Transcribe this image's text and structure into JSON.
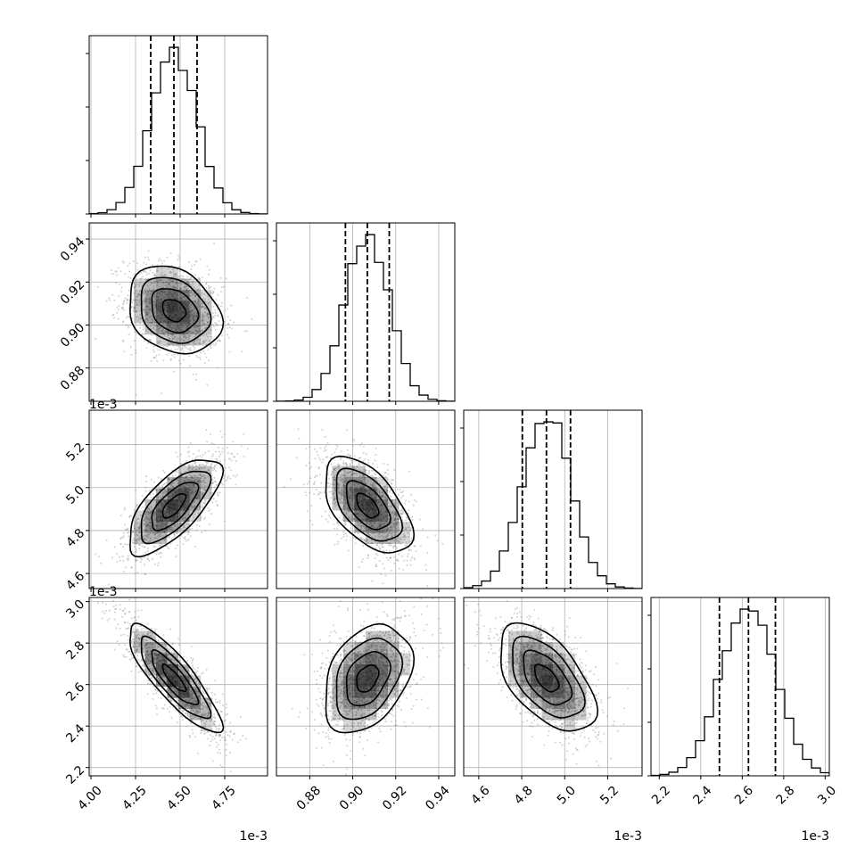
{
  "chart_data": {
    "type": "corner",
    "grid": true,
    "parameters": [
      {
        "ticks": [
          4.0,
          4.25,
          4.5,
          4.75
        ],
        "tick_labels": [
          "4.00",
          "4.25",
          "4.50",
          "4.75"
        ],
        "range": [
          3.99,
          4.99
        ],
        "offset_text": "1e-3",
        "mean": 4.465,
        "sd": 0.13,
        "quantiles": [
          4.335,
          4.465,
          4.595
        ]
      },
      {
        "ticks": [
          0.88,
          0.9,
          0.92,
          0.94
        ],
        "tick_labels": [
          "0.88",
          "0.90",
          "0.92",
          "0.94"
        ],
        "range": [
          0.8645,
          0.9475
        ],
        "offset_text": "",
        "mean": 0.9068,
        "sd": 0.0102,
        "quantiles": [
          0.8966,
          0.9068,
          0.917
        ]
      },
      {
        "ticks": [
          4.6,
          4.8,
          5.0,
          5.2
        ],
        "tick_labels": [
          "4.6",
          "4.8",
          "5.0",
          "5.2"
        ],
        "range": [
          4.53,
          5.36
        ],
        "offset_text": "1e-3",
        "mean": 4.915,
        "sd": 0.112,
        "quantiles": [
          4.803,
          4.915,
          5.027
        ]
      },
      {
        "ticks": [
          2.2,
          2.4,
          2.6,
          2.8,
          3.0
        ],
        "tick_labels": [
          "2.2",
          "2.4",
          "2.6",
          "2.8",
          "3.0"
        ],
        "range": [
          2.16,
          3.02
        ],
        "offset_text": "1e-3",
        "mean": 2.63,
        "sd": 0.13,
        "quantiles": [
          2.49,
          2.63,
          2.76
        ]
      }
    ],
    "correlations": [
      [
        1.0,
        -0.25,
        0.7,
        -0.85
      ],
      [
        -0.25,
        1.0,
        -0.55,
        0.35
      ],
      [
        0.7,
        -0.55,
        1.0,
        -0.55
      ],
      [
        -0.85,
        0.35,
        -0.55,
        1.0
      ]
    ],
    "histogram_bins": 20,
    "quantile_levels": [
      0.16,
      0.5,
      0.84
    ],
    "colors": {
      "line": "#000000",
      "grid": "#b0b0b0",
      "points": "#7f7f7f",
      "shade": "#000000"
    }
  }
}
